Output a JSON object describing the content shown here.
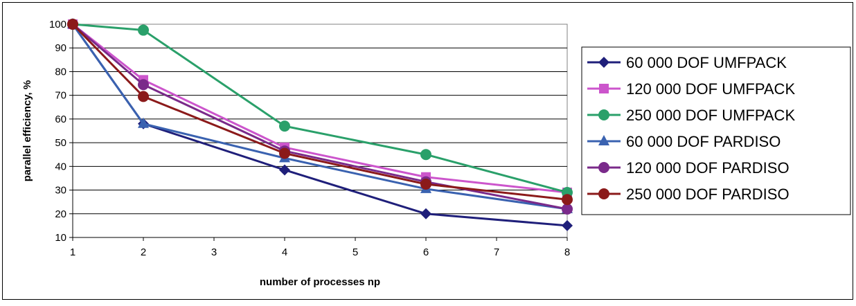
{
  "chart_data": {
    "type": "line",
    "x_categories": [
      "1",
      "2",
      "3",
      "4",
      "5",
      "6",
      "7",
      "8"
    ],
    "xlabel": "number of processes np",
    "ylabel": "parallel efficiency, %",
    "ylim": [
      10,
      100
    ],
    "yticks": [
      10,
      20,
      30,
      40,
      50,
      60,
      70,
      80,
      90,
      100
    ],
    "grid": "horizontal",
    "legend_position": "right",
    "series": [
      {
        "name": "60 000 DOF UMFPACK",
        "color": "#1f1f7a",
        "marker": "diamond",
        "points": [
          {
            "x": 1,
            "y": 100
          },
          {
            "x": 2,
            "y": 58
          },
          {
            "x": 4,
            "y": 38.5
          },
          {
            "x": 6,
            "y": 20
          },
          {
            "x": 8,
            "y": 15
          }
        ]
      },
      {
        "name": "120 000 DOF UMFPACK",
        "color": "#cc55cc",
        "marker": "square",
        "points": [
          {
            "x": 1,
            "y": 100
          },
          {
            "x": 2,
            "y": 76.5
          },
          {
            "x": 4,
            "y": 48
          },
          {
            "x": 6,
            "y": 35.5
          },
          {
            "x": 8,
            "y": 29
          }
        ]
      },
      {
        "name": "250 000 DOF UMFPACK",
        "color": "#2aa06a",
        "marker": "circle",
        "points": [
          {
            "x": 1,
            "y": 100
          },
          {
            "x": 2,
            "y": 97.5
          },
          {
            "x": 4,
            "y": 57
          },
          {
            "x": 6,
            "y": 45
          },
          {
            "x": 8,
            "y": 29
          }
        ]
      },
      {
        "name": "60 000 DOF PARDISO",
        "color": "#3a62b0",
        "marker": "triangle",
        "points": [
          {
            "x": 1,
            "y": 100
          },
          {
            "x": 2,
            "y": 58
          },
          {
            "x": 4,
            "y": 43.5
          },
          {
            "x": 6,
            "y": 30.5
          },
          {
            "x": 8,
            "y": 22
          }
        ]
      },
      {
        "name": "120 000 DOF PARDISO",
        "color": "#7a2a8a",
        "marker": "circle",
        "points": [
          {
            "x": 1,
            "y": 100
          },
          {
            "x": 2,
            "y": 74.5
          },
          {
            "x": 4,
            "y": 46.5
          },
          {
            "x": 6,
            "y": 33.5
          },
          {
            "x": 8,
            "y": 22
          }
        ]
      },
      {
        "name": "250 000 DOF PARDISO",
        "color": "#8b1a1a",
        "marker": "circle",
        "points": [
          {
            "x": 1,
            "y": 100
          },
          {
            "x": 2,
            "y": 69.5
          },
          {
            "x": 4,
            "y": 45.5
          },
          {
            "x": 6,
            "y": 32.5
          },
          {
            "x": 8,
            "y": 26
          }
        ]
      }
    ]
  }
}
